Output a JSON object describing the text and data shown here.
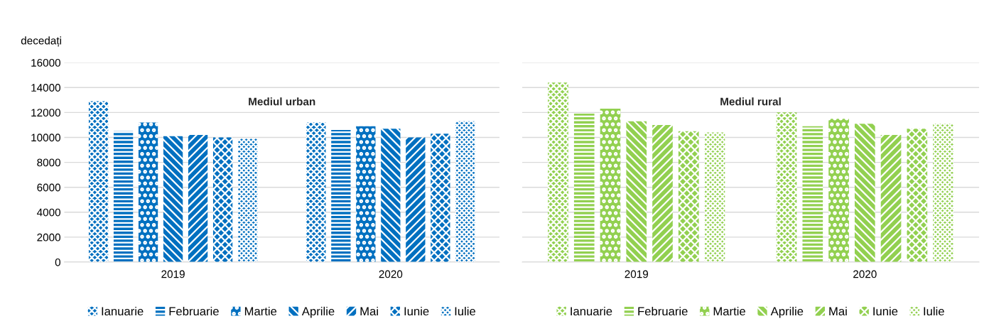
{
  "chart_data": [
    {
      "type": "bar",
      "title": "Mediul urban",
      "ylabel": "decedați",
      "categories": [
        "2019",
        "2020"
      ],
      "ylim": [
        0,
        16000
      ],
      "yticks": [
        0,
        2000,
        4000,
        6000,
        8000,
        10000,
        12000,
        14000,
        16000
      ],
      "grid": "y",
      "legend": "bottom",
      "series": [
        {
          "name": "Ianuarie",
          "color": "#0070c0",
          "values": [
            12900,
            11200
          ]
        },
        {
          "name": "Februarie",
          "color": "#0070c0",
          "values": [
            10500,
            10600
          ]
        },
        {
          "name": "Martie",
          "color": "#0070c0",
          "values": [
            11200,
            10900
          ]
        },
        {
          "name": "Aprilie",
          "color": "#0070c0",
          "values": [
            10100,
            10700
          ]
        },
        {
          "name": "Mai",
          "color": "#0070c0",
          "values": [
            10200,
            10000
          ]
        },
        {
          "name": "Iunie",
          "color": "#0070c0",
          "values": [
            10000,
            10300
          ]
        },
        {
          "name": "Iulie",
          "color": "#0070c0",
          "values": [
            9900,
            11300
          ]
        }
      ]
    },
    {
      "type": "bar",
      "title": "Mediul rural",
      "categories": [
        "2019",
        "2020"
      ],
      "ylim": [
        0,
        16000
      ],
      "yticks": [
        0,
        2000,
        4000,
        6000,
        8000,
        10000,
        12000,
        14000,
        16000
      ],
      "tick_labels": "x",
      "grid": "y",
      "legend": "bottom",
      "series": [
        {
          "name": "Ianuarie",
          "color": "#92d050",
          "values": [
            14400,
            12000
          ]
        },
        {
          "name": "Februarie",
          "color": "#92d050",
          "values": [
            11900,
            10900
          ]
        },
        {
          "name": "Martie",
          "color": "#92d050",
          "values": [
            12300,
            11500
          ]
        },
        {
          "name": "Aprilie",
          "color": "#92d050",
          "values": [
            11300,
            11100
          ]
        },
        {
          "name": "Mai",
          "color": "#92d050",
          "values": [
            11000,
            10200
          ]
        },
        {
          "name": "Iunie",
          "color": "#92d050",
          "values": [
            10500,
            10700
          ]
        },
        {
          "name": "Iulie",
          "color": "#92d050",
          "values": [
            10400,
            11100
          ]
        }
      ]
    }
  ]
}
